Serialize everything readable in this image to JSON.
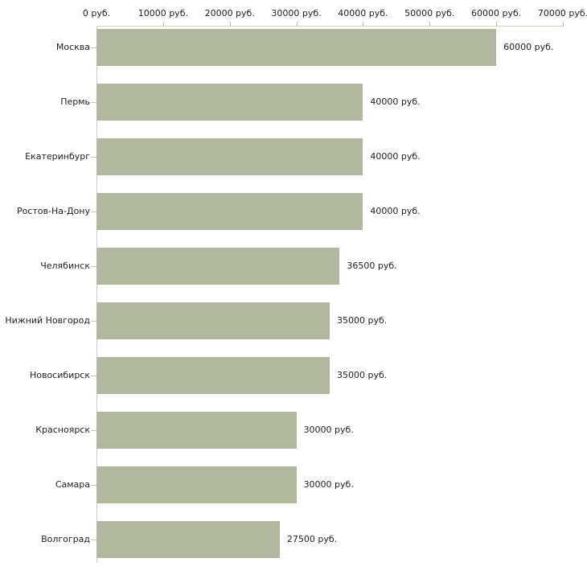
{
  "chart_data": {
    "type": "bar",
    "orientation": "horizontal",
    "title": "",
    "categories": [
      "Москва",
      "Пермь",
      "Екатеринбург",
      "Ростов-На-Дону",
      "Челябинск",
      "Нижний Новгород",
      "Новосибирск",
      "Красноярск",
      "Самара",
      "Волгоград"
    ],
    "values": [
      60000,
      40000,
      40000,
      40000,
      36500,
      35000,
      35000,
      30000,
      30000,
      27500
    ],
    "value_labels": [
      "60000 руб.",
      "40000 руб.",
      "40000 руб.",
      "40000 руб.",
      "36500 руб.",
      "35000 руб.",
      "35000 руб.",
      "30000 руб.",
      "30000 руб.",
      "27500 руб."
    ],
    "x_tick_values": [
      0,
      10000,
      20000,
      30000,
      40000,
      50000,
      60000,
      70000
    ],
    "x_tick_labels": [
      "0 руб.",
      "10000 руб.",
      "20000 руб.",
      "30000 руб.",
      "40000 руб.",
      "50000 руб.",
      "60000 руб.",
      "70000 руб."
    ],
    "xlim": [
      0,
      70000
    ],
    "unit": "руб.",
    "grid": false,
    "legend": false,
    "colors": {
      "bar": "#b2b8a0",
      "axis_line": "#d9d5ba",
      "axis_tick": "#c6c09c",
      "category_tick": "#cdc7a6",
      "y_axis_line": "#cccccc",
      "text": "#222222",
      "background": "#ffffff"
    }
  }
}
